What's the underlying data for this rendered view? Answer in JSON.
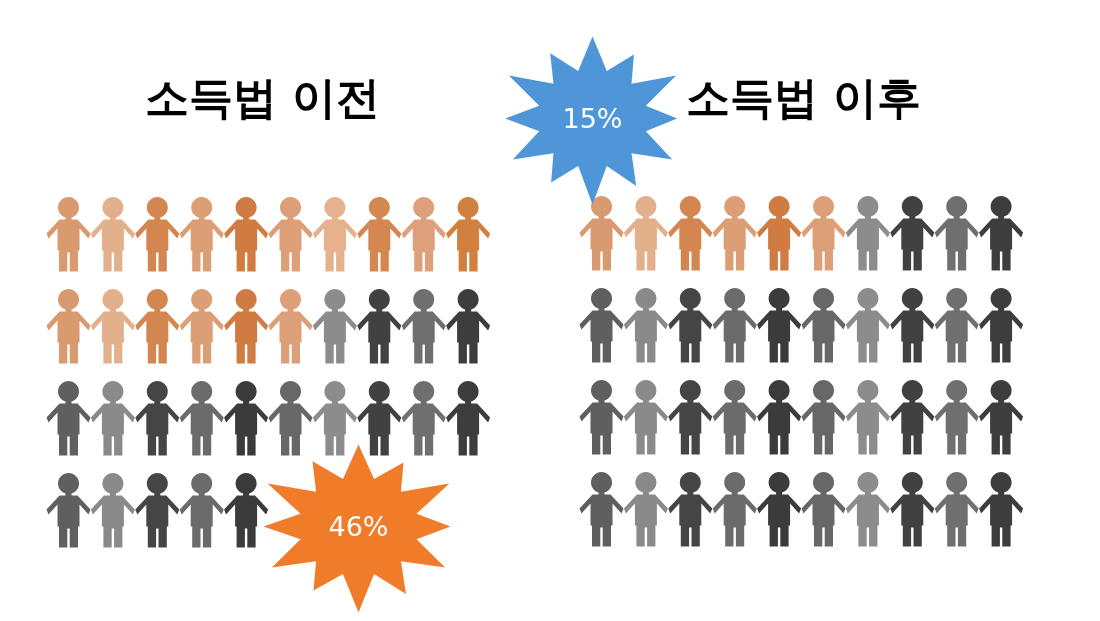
{
  "chart_data": {
    "type": "other",
    "categories": [
      "소득법 이전",
      "소득법 이후"
    ],
    "values": [
      46,
      15
    ],
    "value_labels": [
      "46%",
      "15%"
    ],
    "colors": [
      "#f07c2a",
      "#4f96d8"
    ]
  }
}
